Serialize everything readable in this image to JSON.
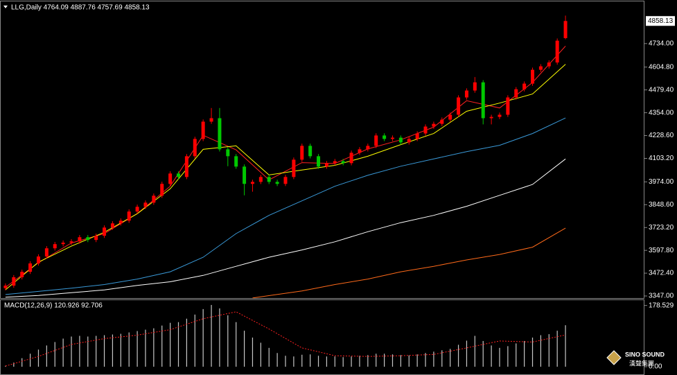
{
  "chart_data": [
    {
      "type": "candlestick",
      "title": "LLG,Daily 4764.09 4887.76 4757.69 4858.13",
      "up_color": "#ff0000",
      "down_color": "#00c800",
      "open": [
        3390,
        3404,
        3450,
        3480,
        3526,
        3564,
        3609,
        3632,
        3640,
        3647,
        3670,
        3655,
        3678,
        3723,
        3746,
        3761,
        3811,
        3837,
        3860,
        3898,
        3963,
        4020,
        4001,
        4115,
        4210,
        4305,
        4324,
        4153,
        4115,
        4058,
        3963,
        3974,
        4001,
        3974,
        3963,
        4001,
        4096,
        4172,
        4115,
        4058,
        4077,
        4088,
        4077,
        4134,
        4153,
        4172,
        4229,
        4210,
        4217,
        4191,
        4210,
        4240,
        4278,
        4293,
        4316,
        4343,
        4438,
        4476,
        4521,
        4324,
        4331,
        4343,
        4438,
        4483,
        4514,
        4590,
        4609,
        4630,
        4764.09
      ],
      "high": [
        3416,
        3462,
        3492,
        3538,
        3576,
        3621,
        3644,
        3652,
        3659,
        3682,
        3682,
        3690,
        3735,
        3758,
        3773,
        3823,
        3849,
        3872,
        3910,
        3975,
        4032,
        4032,
        4127,
        4222,
        4317,
        4380,
        4380,
        4165,
        4127,
        4070,
        3986,
        4013,
        4013,
        3986,
        4013,
        4108,
        4184,
        4184,
        4127,
        4089,
        4100,
        4100,
        4146,
        4165,
        4184,
        4241,
        4241,
        4229,
        4229,
        4222,
        4252,
        4290,
        4305,
        4328,
        4355,
        4450,
        4488,
        4550,
        4533,
        4343,
        4355,
        4450,
        4495,
        4526,
        4602,
        4621,
        4642,
        4762,
        4887.76
      ],
      "low": [
        3378,
        3392,
        3438,
        3468,
        3514,
        3552,
        3597,
        3620,
        3628,
        3635,
        3643,
        3643,
        3666,
        3711,
        3734,
        3749,
        3799,
        3825,
        3848,
        3886,
        3951,
        3989,
        3989,
        4103,
        4198,
        4293,
        4141,
        4060,
        4046,
        3900,
        3920,
        3962,
        3962,
        3951,
        3951,
        3989,
        4084,
        4103,
        4046,
        4046,
        4065,
        4065,
        4065,
        4122,
        4141,
        4160,
        4198,
        4198,
        4179,
        4179,
        4198,
        4228,
        4266,
        4281,
        4304,
        4331,
        4426,
        4464,
        4290,
        4290,
        4319,
        4331,
        4426,
        4471,
        4502,
        4578,
        4597,
        4618,
        4757.69
      ],
      "close": [
        3404,
        3450,
        3480,
        3526,
        3564,
        3609,
        3632,
        3640,
        3647,
        3670,
        3655,
        3678,
        3723,
        3746,
        3761,
        3811,
        3837,
        3860,
        3898,
        3963,
        4020,
        4001,
        4115,
        4210,
        4305,
        4324,
        4153,
        4115,
        4058,
        3963,
        3974,
        4001,
        3974,
        3963,
        4001,
        4096,
        4172,
        4115,
        4058,
        4077,
        4088,
        4077,
        4134,
        4153,
        4172,
        4229,
        4210,
        4217,
        4191,
        4210,
        4240,
        4278,
        4293,
        4316,
        4343,
        4438,
        4476,
        4521,
        4324,
        4331,
        4343,
        4438,
        4483,
        4514,
        4590,
        4609,
        4630,
        4750,
        4858.13
      ],
      "lines": [
        {
          "color": "#ff2020",
          "x": [
            0,
            4,
            8,
            12,
            16,
            20,
            24,
            28,
            32,
            36,
            40,
            44,
            48,
            52,
            56,
            60,
            64,
            68
          ],
          "values": [
            3395,
            3530,
            3638,
            3690,
            3800,
            3950,
            4230,
            4150,
            3985,
            4080,
            4075,
            4155,
            4205,
            4275,
            4420,
            4380,
            4520,
            4720
          ]
        },
        {
          "color": "#ffff00",
          "x": [
            0,
            4,
            8,
            12,
            16,
            20,
            24,
            28,
            32,
            36,
            40,
            44,
            48,
            52,
            56,
            60,
            64,
            68
          ],
          "values": [
            3381,
            3533,
            3621,
            3697,
            3799,
            3936,
            4153,
            4172,
            4012,
            4039,
            4065,
            4115,
            4179,
            4240,
            4362,
            4407,
            4457,
            4620
          ]
        },
        {
          "color": "#3a9ad9",
          "x": [
            0,
            4,
            8,
            12,
            16,
            20,
            24,
            28,
            32,
            36,
            40,
            44,
            48,
            52,
            56,
            60,
            64,
            68
          ],
          "values": [
            3355,
            3372,
            3390,
            3410,
            3440,
            3480,
            3560,
            3690,
            3790,
            3870,
            3950,
            4010,
            4060,
            4100,
            4140,
            4175,
            4240,
            4325
          ]
        },
        {
          "color": "#ffffff",
          "x": [
            0,
            4,
            8,
            12,
            16,
            20,
            24,
            28,
            32,
            36,
            40,
            44,
            48,
            52,
            56,
            60,
            64,
            68
          ],
          "values": [
            3340,
            3350,
            3365,
            3380,
            3405,
            3425,
            3460,
            3510,
            3560,
            3600,
            3645,
            3700,
            3750,
            3790,
            3840,
            3900,
            3960,
            4100
          ]
        },
        {
          "color": "#ff6a1a",
          "x": [
            30,
            36,
            40,
            44,
            48,
            52,
            56,
            60,
            64,
            68
          ],
          "values": [
            3336,
            3375,
            3410,
            3440,
            3480,
            3510,
            3545,
            3575,
            3615,
            3720
          ]
        }
      ],
      "ylim": [
        3335.6,
        4962
      ],
      "yticks": [
        {
          "value": 4734,
          "label": "4734.00"
        },
        {
          "value": 4604.8,
          "label": "4604.80"
        },
        {
          "value": 4479.4,
          "label": "4479.40"
        },
        {
          "value": 4354,
          "label": "4354.00"
        },
        {
          "value": 4228.6,
          "label": "4228.60"
        },
        {
          "value": 4103.2,
          "label": "4103.20"
        },
        {
          "value": 3974,
          "label": "3974.00"
        },
        {
          "value": 3848.6,
          "label": "3848.60"
        },
        {
          "value": 3723.2,
          "label": "3723.20"
        },
        {
          "value": 3597.8,
          "label": "3597.80"
        },
        {
          "value": 3472.4,
          "label": "3472.40"
        },
        {
          "value": 3347,
          "label": "3347.00"
        }
      ]
    },
    {
      "type": "macd",
      "title": "MACD(12,26,9) 120.926 92.706",
      "bar_color": "#c8c8c8",
      "values": [
        3,
        12,
        25,
        38,
        50,
        62,
        72,
        82,
        88,
        90,
        88,
        90,
        92,
        94,
        96,
        100,
        104,
        108,
        112,
        120,
        128,
        130,
        140,
        152,
        168,
        180,
        170,
        150,
        130,
        105,
        85,
        70,
        55,
        40,
        32,
        30,
        35,
        36,
        32,
        30,
        30,
        28,
        30,
        32,
        34,
        38,
        38,
        36,
        34,
        33,
        36,
        40,
        44,
        48,
        52,
        64,
        76,
        90,
        75,
        62,
        55,
        60,
        68,
        75,
        85,
        92,
        95,
        105,
        120.926
      ],
      "signal": {
        "color": "#ff2020",
        "x": [
          0,
          4,
          8,
          12,
          16,
          20,
          24,
          28,
          32,
          36,
          40,
          44,
          48,
          52,
          56,
          60,
          64,
          68
        ],
        "values": [
          2,
          30,
          65,
          82,
          92,
          108,
          140,
          160,
          110,
          55,
          32,
          30,
          32,
          36,
          55,
          75,
          72,
          92.706
        ]
      },
      "ylim": [
        -20,
        192
      ],
      "yticks": [
        178.529,
        {
          "value": 0,
          "label": "0.00"
        }
      ]
    }
  ],
  "logo": "SINO SOUND",
  "logo_sub": "漢聲集團"
}
